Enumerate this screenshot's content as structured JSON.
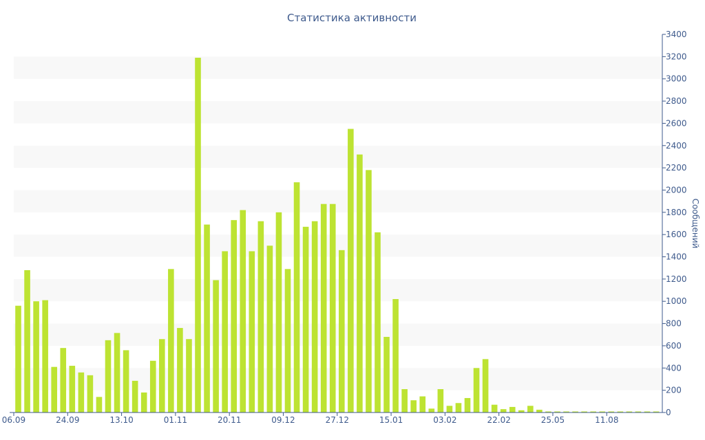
{
  "chart_data": {
    "type": "bar",
    "title": "Статистика активности",
    "ylabel": "Сообщений",
    "xlabel": "",
    "ylim": [
      0,
      3400
    ],
    "ytick_step": 200,
    "grid": "alternating horizontal bands",
    "y_axis_side": "right",
    "x_tick_labels": [
      "06.09",
      "24.09",
      "13.10",
      "01.11",
      "20.11",
      "09.12",
      "27.12",
      "15.01",
      "03.02",
      "22.02",
      "25.05",
      "11.08"
    ],
    "x_tick_bar_index": [
      0,
      6,
      12,
      18,
      24,
      30,
      36,
      42,
      48,
      54,
      60,
      66
    ],
    "bar_color": "#bde332",
    "band_color": "#f8f8f8",
    "axis_color": "#3e5a8c",
    "values": [
      960,
      1280,
      1000,
      1010,
      410,
      580,
      420,
      360,
      335,
      140,
      650,
      715,
      560,
      285,
      180,
      465,
      660,
      1290,
      760,
      660,
      3190,
      1690,
      1190,
      1450,
      1730,
      1820,
      1450,
      1720,
      1500,
      1800,
      1290,
      2070,
      1670,
      1720,
      1875,
      1875,
      1460,
      2550,
      2320,
      2180,
      1620,
      680,
      1020,
      210,
      110,
      145,
      35,
      210,
      60,
      85,
      130,
      400,
      480,
      70,
      30,
      50,
      20,
      60,
      25,
      5,
      5,
      5,
      5,
      5,
      5,
      5,
      5,
      5,
      5,
      5,
      5,
      5
    ]
  }
}
